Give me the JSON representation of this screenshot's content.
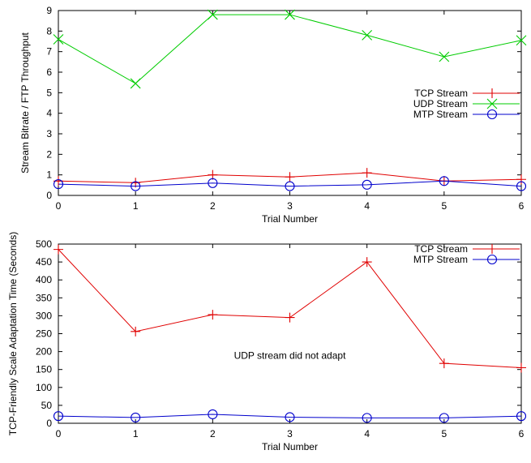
{
  "chart_data": [
    {
      "type": "line",
      "title": "",
      "xlabel": "Trial Number",
      "ylabel": "Stream Bitrate / FTP Throughput",
      "x": [
        0,
        1,
        2,
        3,
        4,
        5,
        6
      ],
      "xlim": [
        0,
        6
      ],
      "ylim": [
        0,
        9
      ],
      "xticks": [
        0,
        1,
        2,
        3,
        4,
        5,
        6
      ],
      "yticks": [
        0,
        1,
        2,
        3,
        4,
        5,
        6,
        7,
        8,
        9
      ],
      "grid": false,
      "legend_position": "right",
      "annotation": "",
      "series": [
        {
          "name": "TCP Stream",
          "marker": "plus",
          "color": "#e00000",
          "values": [
            0.7,
            0.62,
            1.0,
            0.9,
            1.1,
            0.7,
            0.78
          ]
        },
        {
          "name": "UDP Stream",
          "marker": "x",
          "color": "#00cc00",
          "values": [
            7.6,
            5.45,
            8.8,
            8.8,
            7.8,
            6.75,
            7.55
          ]
        },
        {
          "name": "MTP Stream",
          "marker": "circle",
          "color": "#0000cc",
          "values": [
            0.55,
            0.45,
            0.6,
            0.45,
            0.52,
            0.7,
            0.45
          ]
        }
      ]
    },
    {
      "type": "line",
      "title": "",
      "xlabel": "Trial Number",
      "ylabel": "TCP-Friendly Scale Adaptation Time (Seconds)",
      "x": [
        0,
        1,
        2,
        3,
        4,
        5,
        6
      ],
      "xlim": [
        0,
        6
      ],
      "ylim": [
        0,
        500
      ],
      "xticks": [
        0,
        1,
        2,
        3,
        4,
        5,
        6
      ],
      "yticks": [
        0,
        50,
        100,
        150,
        200,
        250,
        300,
        350,
        400,
        450,
        500
      ],
      "grid": false,
      "legend_position": "top-right",
      "annotation": "UDP stream did not adapt",
      "series": [
        {
          "name": "TCP Stream",
          "marker": "plus",
          "color": "#e00000",
          "values": [
            485,
            256,
            303,
            295,
            450,
            167,
            155
          ]
        },
        {
          "name": "MTP Stream",
          "marker": "circle",
          "color": "#0000cc",
          "values": [
            20,
            16,
            25,
            17,
            15,
            15,
            20
          ]
        }
      ]
    }
  ]
}
